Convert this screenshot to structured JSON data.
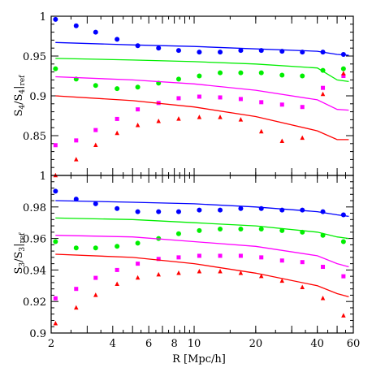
{
  "chart_data": [
    {
      "type": "scatter",
      "panel": "top",
      "ylabel": "S4/S4|ref",
      "x_scale": "log",
      "xlim": [
        2,
        60
      ],
      "ylim": [
        0.8,
        1.0
      ],
      "yticks": [
        0.85,
        0.9,
        0.95,
        1
      ],
      "ytick_labels": [
        "0.85",
        "0.9",
        "0.95",
        "1"
      ],
      "grid": false,
      "series": [
        {
          "color": "#0000ff",
          "marker": "circle",
          "points": {
            "x": [
              2.1,
              2.65,
              3.3,
              4.2,
              5.3,
              6.7,
              8.4,
              10.6,
              13.4,
              16.9,
              21.3,
              26.9,
              33.8,
              42.6,
              53.7
            ],
            "y": [
              0.996,
              0.988,
              0.98,
              0.971,
              0.963,
              0.96,
              0.957,
              0.955,
              0.955,
              0.957,
              0.957,
              0.956,
              0.955,
              0.955,
              0.952
            ]
          },
          "line": {
            "x": [
              2.1,
              5,
              10,
              20,
              40,
              50,
              57
            ],
            "y": [
              0.967,
              0.964,
              0.962,
              0.959,
              0.956,
              0.952,
              0.951
            ]
          }
        },
        {
          "color": "#00ee00",
          "marker": "circle",
          "points": {
            "x": [
              2.1,
              2.65,
              3.3,
              4.2,
              5.3,
              6.7,
              8.4,
              10.6,
              13.4,
              16.9,
              21.3,
              26.9,
              33.8,
              42.6,
              53.7
            ],
            "y": [
              0.934,
              0.921,
              0.913,
              0.909,
              0.911,
              0.916,
              0.921,
              0.925,
              0.929,
              0.929,
              0.929,
              0.926,
              0.925,
              0.932,
              0.934
            ]
          },
          "line": {
            "x": [
              2.1,
              5,
              10,
              20,
              40,
              50,
              57
            ],
            "y": [
              0.947,
              0.945,
              0.943,
              0.94,
              0.935,
              0.92,
              0.918
            ]
          }
        },
        {
          "color": "#ff00ff",
          "marker": "square",
          "points": {
            "x": [
              2.1,
              2.65,
              3.3,
              4.2,
              5.3,
              6.7,
              8.4,
              10.6,
              13.4,
              16.9,
              21.3,
              26.9,
              33.8,
              42.6,
              53.7
            ],
            "y": [
              0.838,
              0.844,
              0.857,
              0.871,
              0.883,
              0.891,
              0.897,
              0.899,
              0.898,
              0.896,
              0.892,
              0.889,
              0.886,
              0.91,
              0.925
            ]
          },
          "line": {
            "x": [
              2.1,
              5,
              10,
              20,
              40,
              50,
              57
            ],
            "y": [
              0.924,
              0.92,
              0.915,
              0.907,
              0.895,
              0.883,
              0.882
            ]
          }
        },
        {
          "color": "#ff0000",
          "marker": "triangle",
          "points": {
            "x": [
              2.1,
              2.65,
              3.3,
              4.2,
              5.3,
              6.7,
              8.4,
              10.6,
              13.4,
              16.9,
              21.3,
              26.9,
              33.8,
              42.6,
              53.7
            ],
            "y": [
              0.8,
              0.82,
              0.838,
              0.853,
              0.863,
              0.868,
              0.871,
              0.873,
              0.873,
              0.87,
              0.855,
              0.843,
              0.847,
              0.902,
              0.928
            ]
          },
          "line": {
            "x": [
              2.1,
              5,
              10,
              20,
              40,
              50,
              57
            ],
            "y": [
              0.9,
              0.894,
              0.886,
              0.874,
              0.856,
              0.845,
              0.845
            ]
          }
        }
      ]
    },
    {
      "type": "scatter",
      "panel": "bottom",
      "xlabel": "R [Mpc/h]",
      "ylabel": "S3/S3|ref",
      "x_scale": "log",
      "xlim": [
        2,
        60
      ],
      "ylim": [
        0.9,
        1.0
      ],
      "xticks": [
        2,
        4,
        6,
        8,
        10,
        20,
        40,
        60
      ],
      "xtick_labels": [
        "2",
        "4",
        "6",
        "8",
        "10",
        "20",
        "40",
        "60"
      ],
      "yticks": [
        0.9,
        0.92,
        0.94,
        0.96,
        0.98,
        1
      ],
      "ytick_labels": [
        "0.9",
        "0.92",
        "0.94",
        "0.96",
        "0.98",
        "1"
      ],
      "grid": false,
      "series": [
        {
          "color": "#0000ff",
          "marker": "circle",
          "points": {
            "x": [
              2.1,
              2.65,
              3.3,
              4.2,
              5.3,
              6.7,
              8.4,
              10.6,
              13.4,
              16.9,
              21.3,
              26.9,
              33.8,
              42.6,
              53.7
            ],
            "y": [
              0.99,
              0.985,
              0.982,
              0.979,
              0.977,
              0.977,
              0.977,
              0.978,
              0.978,
              0.979,
              0.979,
              0.978,
              0.978,
              0.977,
              0.975
            ]
          },
          "line": {
            "x": [
              2.1,
              5,
              10,
              20,
              40,
              50,
              57
            ],
            "y": [
              0.984,
              0.983,
              0.982,
              0.98,
              0.977,
              0.975,
              0.974
            ]
          }
        },
        {
          "color": "#00ee00",
          "marker": "circle",
          "points": {
            "x": [
              2.1,
              2.65,
              3.3,
              4.2,
              5.3,
              6.7,
              8.4,
              10.6,
              13.4,
              16.9,
              21.3,
              26.9,
              33.8,
              42.6,
              53.7
            ],
            "y": [
              0.958,
              0.954,
              0.954,
              0.955,
              0.957,
              0.96,
              0.963,
              0.965,
              0.966,
              0.966,
              0.966,
              0.965,
              0.964,
              0.962,
              0.958
            ]
          },
          "line": {
            "x": [
              2.1,
              5,
              10,
              20,
              40,
              50,
              57
            ],
            "y": [
              0.973,
              0.972,
              0.97,
              0.968,
              0.964,
              0.961,
              0.96
            ]
          }
        },
        {
          "color": "#ff00ff",
          "marker": "square",
          "points": {
            "x": [
              2.1,
              2.65,
              3.3,
              4.2,
              5.3,
              6.7,
              8.4,
              10.6,
              13.4,
              16.9,
              21.3,
              26.9,
              33.8,
              42.6,
              53.7
            ],
            "y": [
              0.922,
              0.928,
              0.935,
              0.94,
              0.944,
              0.947,
              0.948,
              0.949,
              0.949,
              0.949,
              0.948,
              0.946,
              0.945,
              0.942,
              0.936
            ]
          },
          "line": {
            "x": [
              2.1,
              5,
              10,
              20,
              40,
              50,
              57
            ],
            "y": [
              0.962,
              0.961,
              0.958,
              0.955,
              0.949,
              0.944,
              0.942
            ]
          }
        },
        {
          "color": "#ff0000",
          "marker": "triangle",
          "points": {
            "x": [
              2.1,
              2.65,
              3.3,
              4.2,
              5.3,
              6.7,
              8.4,
              10.6,
              13.4,
              16.9,
              21.3,
              26.9,
              33.8,
              42.6,
              53.7
            ],
            "y": [
              0.906,
              0.916,
              0.924,
              0.931,
              0.935,
              0.937,
              0.938,
              0.939,
              0.939,
              0.938,
              0.936,
              0.933,
              0.929,
              0.922,
              0.911
            ]
          },
          "line": {
            "x": [
              2.1,
              5,
              10,
              20,
              40,
              50,
              57
            ],
            "y": [
              0.95,
              0.948,
              0.944,
              0.938,
              0.93,
              0.925,
              0.923
            ]
          }
        }
      ]
    }
  ]
}
